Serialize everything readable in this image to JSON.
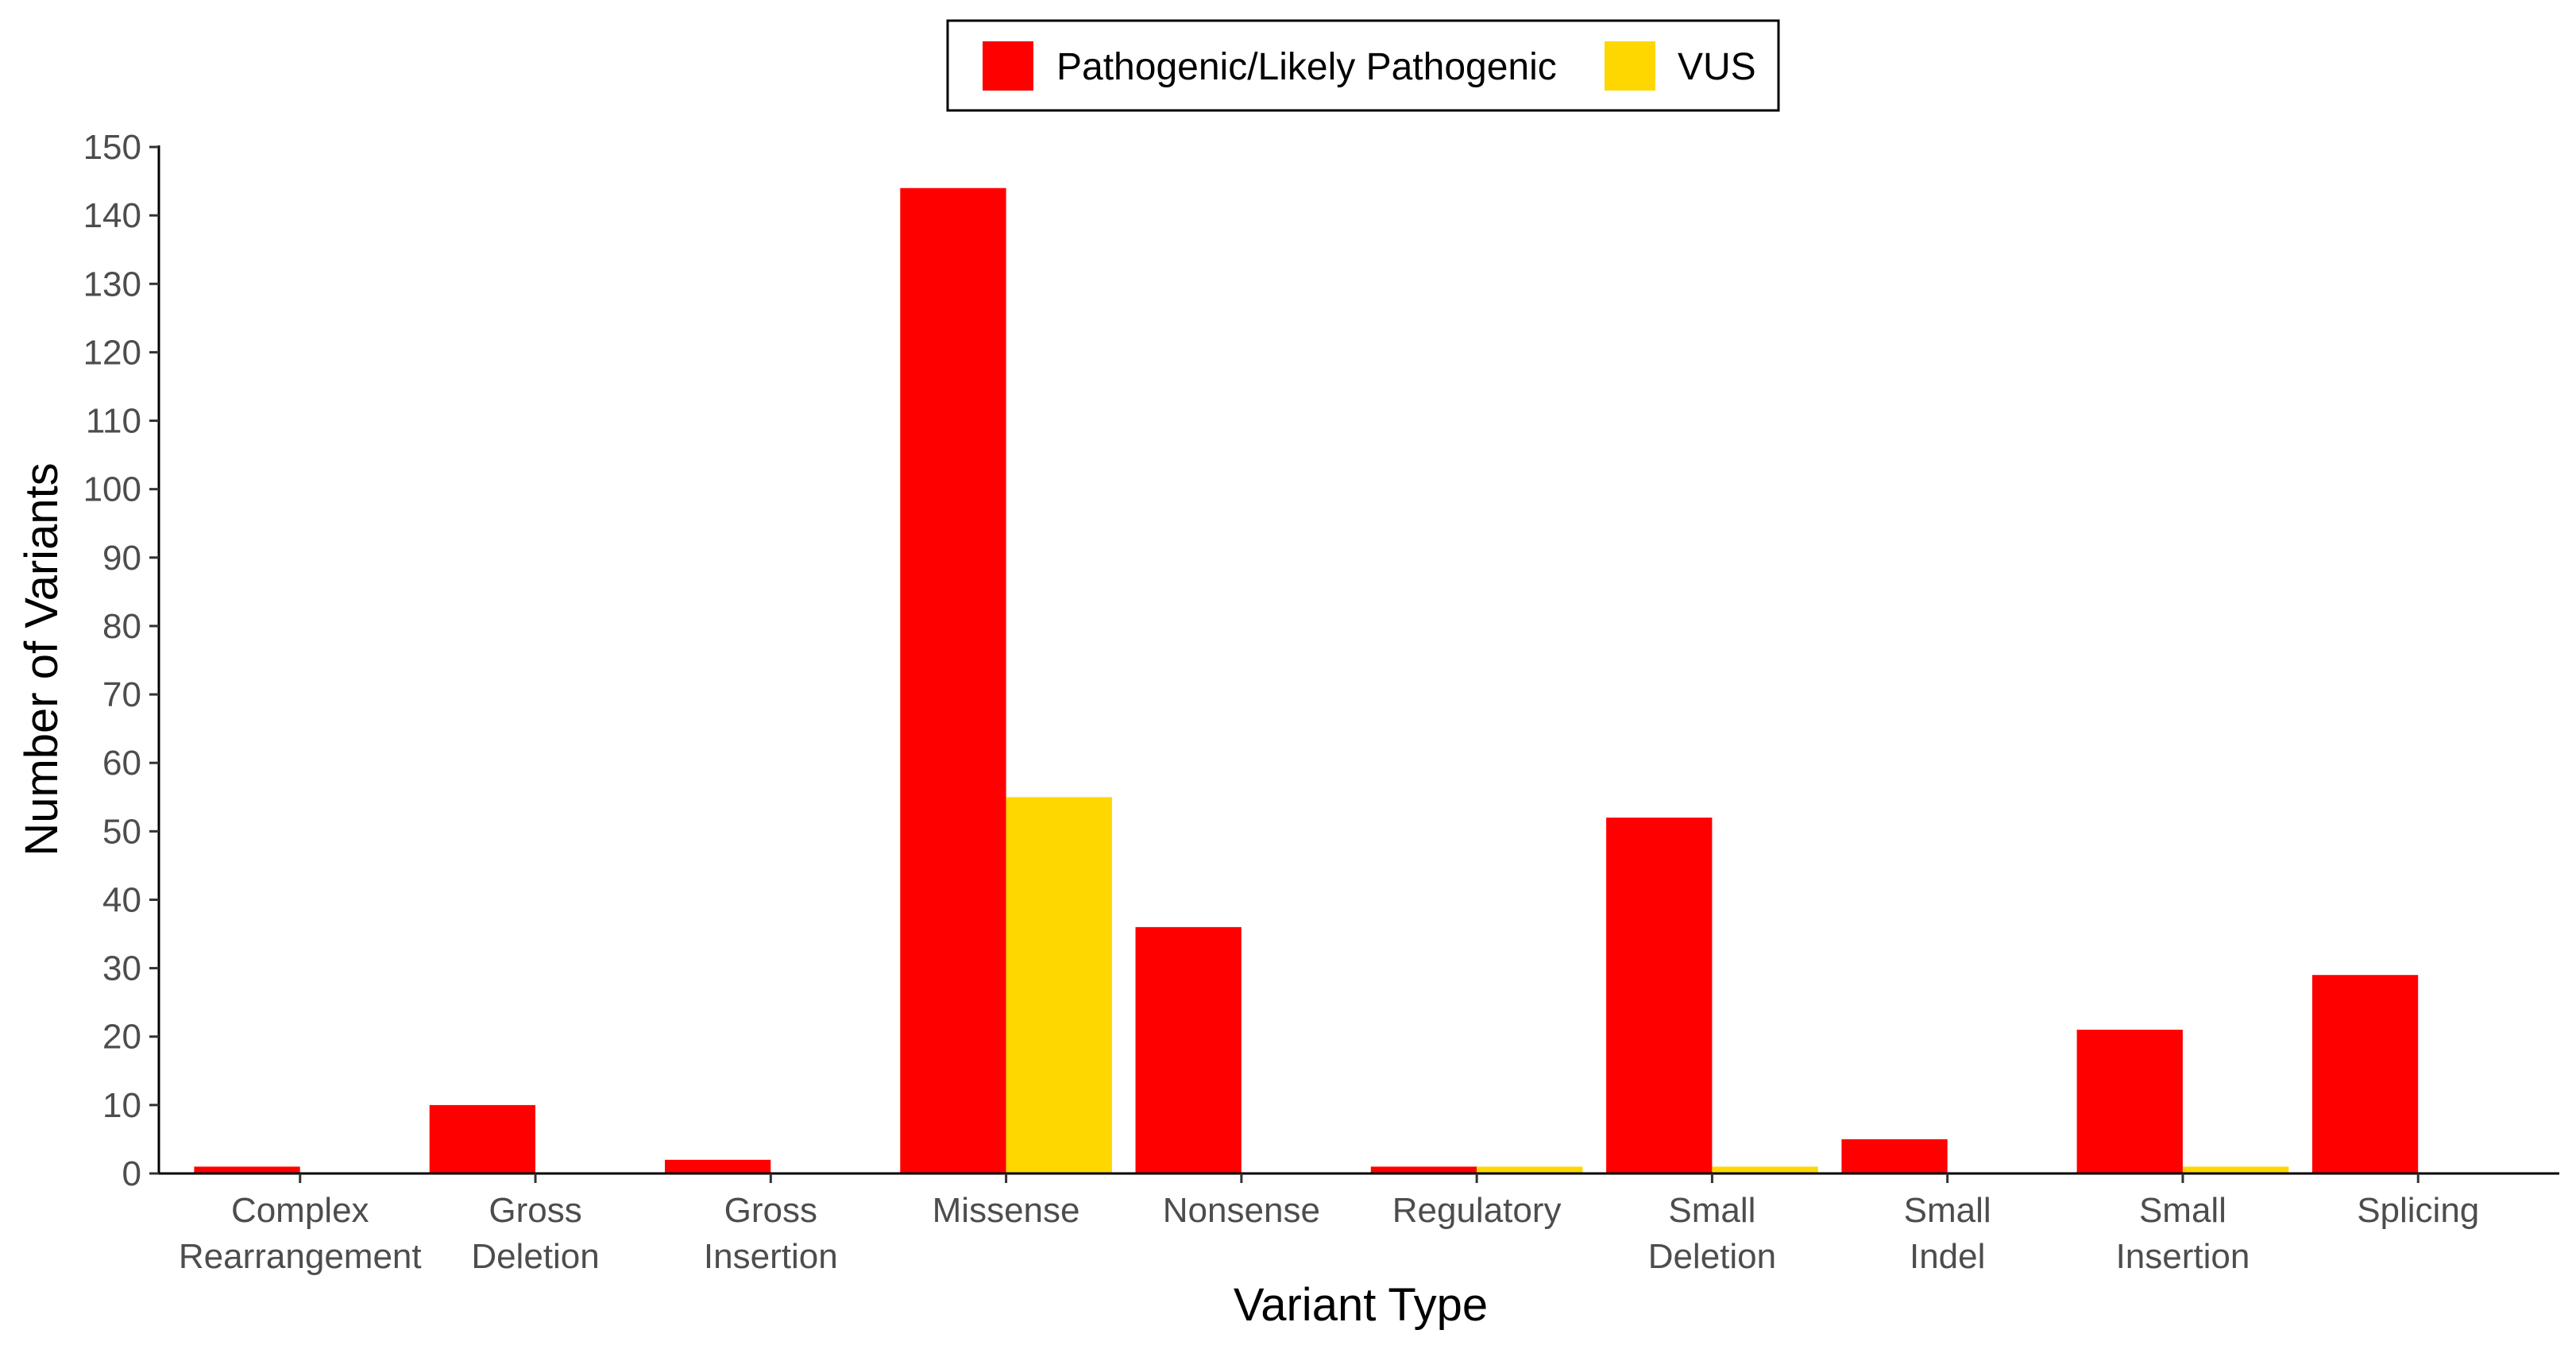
{
  "chart_data": {
    "type": "bar",
    "title": "",
    "xlabel": "Variant Type",
    "ylabel": "Number of Variants",
    "ylim": [
      0,
      150
    ],
    "yticks": [
      0,
      10,
      20,
      30,
      40,
      50,
      60,
      70,
      80,
      90,
      100,
      110,
      120,
      130,
      140,
      150
    ],
    "grid": false,
    "legend_position": "top-center",
    "categories": [
      [
        "Complex",
        "Rearrangement"
      ],
      [
        "Gross",
        "Deletion"
      ],
      [
        "Gross",
        "Insertion"
      ],
      [
        "Missense"
      ],
      [
        "Nonsense"
      ],
      [
        "Regulatory"
      ],
      [
        "Small",
        "Deletion"
      ],
      [
        "Small",
        "Indel"
      ],
      [
        "Small",
        "Insertion"
      ],
      [
        "Splicing"
      ]
    ],
    "series": [
      {
        "name": "Pathogenic/Likely Pathogenic",
        "color": "#ff0000",
        "values": [
          1,
          10,
          2,
          144,
          36,
          1,
          52,
          5,
          21,
          29
        ]
      },
      {
        "name": "VUS",
        "color": "#ffd700",
        "values": [
          0,
          0,
          0,
          55,
          0,
          1,
          1,
          0,
          1,
          0
        ]
      }
    ]
  }
}
